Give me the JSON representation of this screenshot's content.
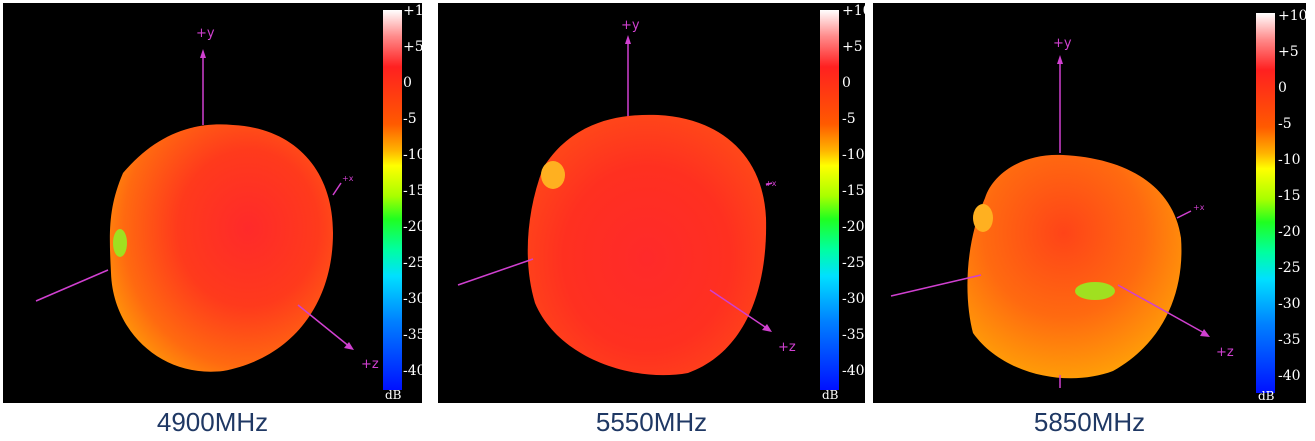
{
  "panels": [
    {
      "caption": "4900MHz",
      "axes": {
        "y": "+y",
        "x": "+x",
        "z": "+z"
      }
    },
    {
      "caption": "5550MHz",
      "axes": {
        "y": "+y",
        "x": "+x",
        "z": "+z"
      }
    },
    {
      "caption": "5850MHz",
      "axes": {
        "y": "+y",
        "x": "+x",
        "z": "+z"
      }
    }
  ],
  "scale": {
    "unit": "dB",
    "ticks": [
      "+10",
      "+5",
      "0",
      "-5",
      "-10",
      "-15",
      "-20",
      "-25",
      "-30",
      "-35",
      "-40"
    ]
  },
  "colors": {
    "axis": "#d040d0",
    "background": "#000000",
    "caption": "#1f3864"
  }
}
